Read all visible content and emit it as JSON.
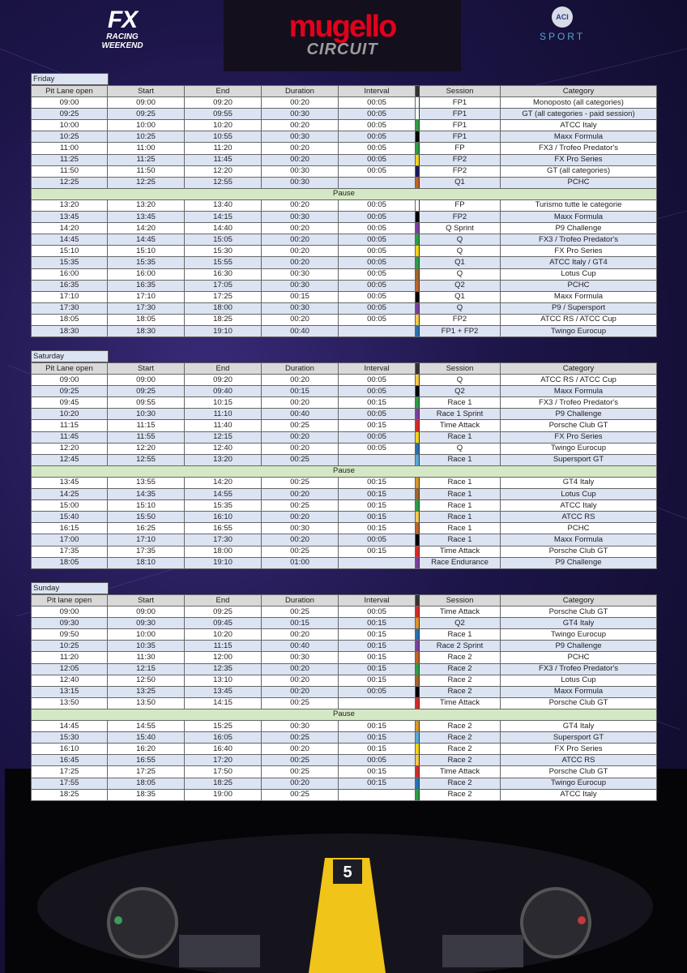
{
  "header": {
    "brand": "FX",
    "brand_sub": "RACING WEEKEND",
    "circuit": "mugello",
    "circuit_sub": "CIRCUIT",
    "federation": "ACI",
    "federation_sub": "SPORT"
  },
  "days": [
    {
      "label": "Friday",
      "columns": [
        "Pit Lane open",
        "Start",
        "End",
        "Duration",
        "Interval",
        "Session",
        "Category"
      ],
      "before": {
        "rows": [
          [
            "09:00",
            "09:00",
            "09:20",
            "00:20",
            "00:05",
            "FP1",
            "Monoposto (all categories)"
          ],
          [
            "09:25",
            "09:25",
            "09:55",
            "00:30",
            "00:05",
            "FP1",
            "GT (all categories - paid session)"
          ],
          [
            "10:00",
            "10:00",
            "10:20",
            "00:20",
            "00:05",
            "FP1",
            "ATCC Italy"
          ],
          [
            "10:25",
            "10:25",
            "10:55",
            "00:30",
            "00:05",
            "FP1",
            "Maxx Formula"
          ],
          [
            "11:00",
            "11:00",
            "11:20",
            "00:20",
            "00:05",
            "FP",
            "FX3 / Trofeo Predator's"
          ],
          [
            "11:25",
            "11:25",
            "11:45",
            "00:20",
            "00:05",
            "FP2",
            "FX Pro Series"
          ],
          [
            "11:50",
            "11:50",
            "12:20",
            "00:30",
            "00:05",
            "FP2",
            "GT (all categories)"
          ],
          [
            "12:25",
            "12:25",
            "12:55",
            "00:30",
            null,
            "Q1",
            "PCHC"
          ]
        ],
        "colors": [
          "#ffffff",
          "#ffffff",
          "#2e9c46",
          "#000000",
          "#2e9c46",
          "#f2d21a",
          "#1a1a5e",
          "#c0622a"
        ]
      },
      "pause": "Pause",
      "after": {
        "rows": [
          [
            "13:20",
            "13:20",
            "13:40",
            "00:20",
            "00:05",
            "FP",
            "Turismo tutte le categorie"
          ],
          [
            "13:45",
            "13:45",
            "14:15",
            "00:30",
            "00:05",
            "FP2",
            "Maxx Formula"
          ],
          [
            "14:20",
            "14:20",
            "14:40",
            "00:20",
            "00:05",
            "Q Sprint",
            "P9 Challenge"
          ],
          [
            "14:45",
            "14:45",
            "15:05",
            "00:20",
            "00:05",
            "Q",
            "FX3 / Trofeo Predator's"
          ],
          [
            "15:10",
            "15:10",
            "15:30",
            "00:20",
            "00:05",
            "Q",
            "FX Pro Series"
          ],
          [
            "15:35",
            "15:35",
            "15:55",
            "00:20",
            "00:05",
            "Q1",
            "ATCC Italy / GT4"
          ],
          [
            "16:00",
            "16:00",
            "16:30",
            "00:30",
            "00:05",
            "Q",
            "Lotus Cup"
          ],
          [
            "16:35",
            "16:35",
            "17:05",
            "00:30",
            "00:05",
            "Q2",
            "PCHC"
          ],
          [
            "17:10",
            "17:10",
            "17:25",
            "00:15",
            "00:05",
            "Q1",
            "Maxx Formula"
          ],
          [
            "17:30",
            "17:30",
            "18:00",
            "00:30",
            "00:05",
            "Q",
            "P9 / Supersport"
          ],
          [
            "18:05",
            "18:05",
            "18:25",
            "00:20",
            "00:05",
            "FP2",
            "ATCC RS / ATCC Cup"
          ],
          [
            "18:30",
            "18:30",
            "19:10",
            "00:40",
            null,
            "FP1 + FP2",
            "Twingo Eurocup"
          ]
        ],
        "colors": [
          "#ffffff",
          "#000000",
          "#7a3fa0",
          "#2e9c46",
          "#f2d21a",
          "#2e9c46",
          "#a0652a",
          "#c0622a",
          "#000000",
          "#7a3fa0",
          "#f2c84a",
          "#2a6fb0"
        ]
      }
    },
    {
      "label": "Saturday",
      "columns": [
        "Pit Lane open",
        "Start",
        "End",
        "Duration",
        "Interval",
        "Session",
        "Category"
      ],
      "before": {
        "rows": [
          [
            "09:00",
            "09:00",
            "09:20",
            "00:20",
            "00:05",
            "Q",
            "ATCC RS / ATCC Cup"
          ],
          [
            "09:25",
            "09:25",
            "09:40",
            "00:15",
            "00:05",
            "Q2",
            "Maxx Formula"
          ],
          [
            "09:45",
            "09:55",
            "10:15",
            "00:20",
            "00:15",
            "Race 1",
            "FX3 / Trofeo Predator's"
          ],
          [
            "10:20",
            "10:30",
            "11:10",
            "00:40",
            "00:05",
            "Race 1 Sprint",
            "P9 Challenge"
          ],
          [
            "11:15",
            "11:15",
            "11:40",
            "00:25",
            "00:15",
            "Time Attack",
            "Porsche Club GT"
          ],
          [
            "11:45",
            "11:55",
            "12:15",
            "00:20",
            "00:05",
            "Race 1",
            "FX Pro Series"
          ],
          [
            "12:20",
            "12:20",
            "12:40",
            "00:20",
            "00:05",
            "Q",
            "Twingo Eurocup"
          ],
          [
            "12:45",
            "12:55",
            "13:20",
            "00:25",
            null,
            "Race 1",
            "Supersport GT"
          ]
        ],
        "colors": [
          "#f2c84a",
          "#000000",
          "#2e9c46",
          "#7a3fa0",
          "#d42a2a",
          "#f2d21a",
          "#2a6fb0",
          "#5aa9d6"
        ]
      },
      "pause": "Pause",
      "after": {
        "rows": [
          [
            "13:45",
            "13:55",
            "14:20",
            "00:25",
            "00:15",
            "Race 1",
            "GT4 Italy"
          ],
          [
            "14:25",
            "14:35",
            "14:55",
            "00:20",
            "00:15",
            "Race 1",
            "Lotus Cup"
          ],
          [
            "15:00",
            "15:10",
            "15:35",
            "00:25",
            "00:15",
            "Race 1",
            "ATCC Italy"
          ],
          [
            "15:40",
            "15:50",
            "16:10",
            "00:20",
            "00:15",
            "Race 1",
            "ATCC RS"
          ],
          [
            "16:15",
            "16:25",
            "16:55",
            "00:30",
            "00:15",
            "Race 1",
            "PCHC"
          ],
          [
            "17:00",
            "17:10",
            "17:30",
            "00:20",
            "00:05",
            "Race 1",
            "Maxx Formula"
          ],
          [
            "17:35",
            "17:35",
            "18:00",
            "00:25",
            "00:15",
            "Time Attack",
            "Porsche Club GT"
          ],
          [
            "18:05",
            "18:10",
            "19:10",
            "01:00",
            null,
            "Race Endurance",
            "P9 Challenge"
          ]
        ],
        "colors": [
          "#d9952a",
          "#a0652a",
          "#2e9c46",
          "#f2c84a",
          "#c0622a",
          "#000000",
          "#d42a2a",
          "#7a3fa0"
        ]
      }
    },
    {
      "label": "Sunday",
      "columns": [
        "Pit lane open",
        "Start",
        "End",
        "Duration",
        "Interval",
        "Session",
        "Category"
      ],
      "before": {
        "rows": [
          [
            "09:00",
            "09:00",
            "09:25",
            "00:25",
            "00:05",
            "Time Attack",
            "Porsche Club GT"
          ],
          [
            "09:30",
            "09:30",
            "09:45",
            "00:15",
            "00:15",
            "Q2",
            "GT4 Italy"
          ],
          [
            "09:50",
            "10:00",
            "10:20",
            "00:20",
            "00:15",
            "Race 1",
            "Twingo Eurocup"
          ],
          [
            "10:25",
            "10:35",
            "11:15",
            "00:40",
            "00:15",
            "Race 2 Sprint",
            "P9 Challenge"
          ],
          [
            "11:20",
            "11:30",
            "12:00",
            "00:30",
            "00:15",
            "Race 2",
            "PCHC"
          ],
          [
            "12:05",
            "12:15",
            "12:35",
            "00:20",
            "00:15",
            "Race 2",
            "FX3 / Trofeo Predator's"
          ],
          [
            "12:40",
            "12:50",
            "13:10",
            "00:20",
            "00:15",
            "Race 2",
            "Lotus Cup"
          ],
          [
            "13:15",
            "13:25",
            "13:45",
            "00:20",
            "00:05",
            "Race 2",
            "Maxx Formula"
          ],
          [
            "13:50",
            "13:50",
            "14:15",
            "00:25",
            null,
            "Time Attack",
            "Porsche Club GT"
          ]
        ],
        "colors": [
          "#d42a2a",
          "#d9952a",
          "#2a6fb0",
          "#7a3fa0",
          "#c0622a",
          "#2e9c46",
          "#a0652a",
          "#000000",
          "#d42a2a"
        ]
      },
      "pause": "Pause",
      "after": {
        "rows": [
          [
            "14:45",
            "14:55",
            "15:25",
            "00:30",
            "00:15",
            "Race 2",
            "GT4 Italy"
          ],
          [
            "15:30",
            "15:40",
            "16:05",
            "00:25",
            "00:15",
            "Race 2",
            "Supersport GT"
          ],
          [
            "16:10",
            "16:20",
            "16:40",
            "00:20",
            "00:15",
            "Race 2",
            "FX Pro Series"
          ],
          [
            "16:45",
            "16:55",
            "17:20",
            "00:25",
            "00:05",
            "Race 2",
            "ATCC RS"
          ],
          [
            "17:25",
            "17:25",
            "17:50",
            "00:25",
            "00:15",
            "Time Attack",
            "Porsche Club GT"
          ],
          [
            "17:55",
            "18:05",
            "18:25",
            "00:20",
            "00:15",
            "Race 2",
            "Twingo Eurocup"
          ],
          [
            "18:25",
            "18:35",
            "19:00",
            "00:25",
            null,
            "Race 2",
            "ATCC Italy"
          ]
        ],
        "colors": [
          "#d9952a",
          "#5aa9d6",
          "#f2d21a",
          "#f2c84a",
          "#d42a2a",
          "#2a6fb0",
          "#2e9c46"
        ]
      }
    }
  ]
}
